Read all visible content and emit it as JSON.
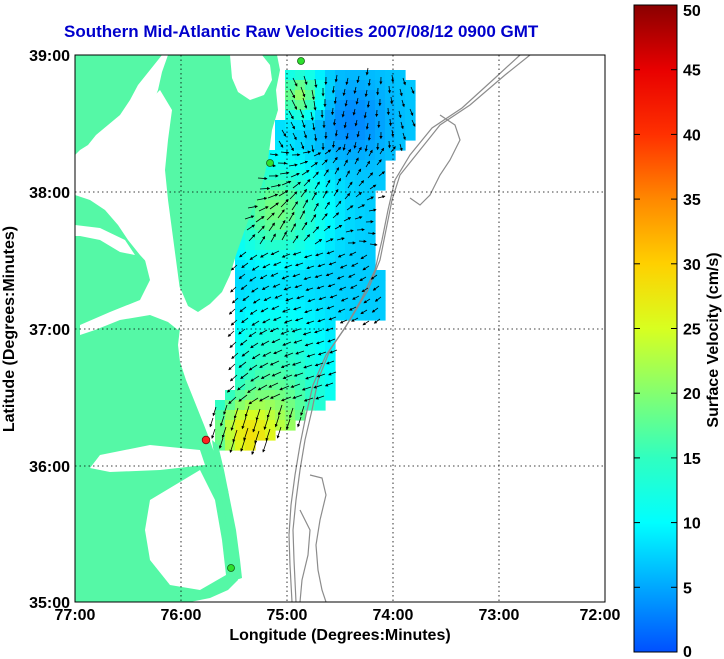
{
  "title": "Southern Mid-Atlantic Raw Velocities 2007/08/12 0900 GMT",
  "xlabel": "Longitude (Degrees:Minutes)",
  "ylabel": "Latitude (Degrees:Minutes)",
  "x_ticks": [
    "77:00",
    "76:00",
    "75:00",
    "74:00",
    "73:00",
    "72:00"
  ],
  "y_ticks": [
    "39:00",
    "38:00",
    "37:00",
    "36:00",
    "35:00"
  ],
  "colorbar": {
    "label": "Surface Velocity (cm/s)",
    "ticks": [
      "0",
      "5",
      "10",
      "15",
      "20",
      "25",
      "30",
      "35",
      "40",
      "45",
      "50"
    ],
    "min": 0,
    "max": 50
  },
  "colors": {
    "land": "#55f8a6",
    "water": "#ffffff",
    "title": "#0000cc",
    "grid": "#000000",
    "bathymetry": "#8c8c8c",
    "station_green": "#2ee02e",
    "station_red": "#ff2020"
  },
  "chart_data": {
    "type": "heatmap",
    "xlim": [
      -77,
      -72
    ],
    "ylim": [
      35,
      39
    ],
    "grid": true,
    "stations": [
      {
        "lon": -74.88,
        "lat": 38.95,
        "color": "green"
      },
      {
        "lon": -75.09,
        "lat": 38.22,
        "color": "green"
      },
      {
        "lon": -75.75,
        "lat": 36.19,
        "color": "red"
      },
      {
        "lon": -75.52,
        "lat": 35.26,
        "color": "green"
      }
    ]
  }
}
